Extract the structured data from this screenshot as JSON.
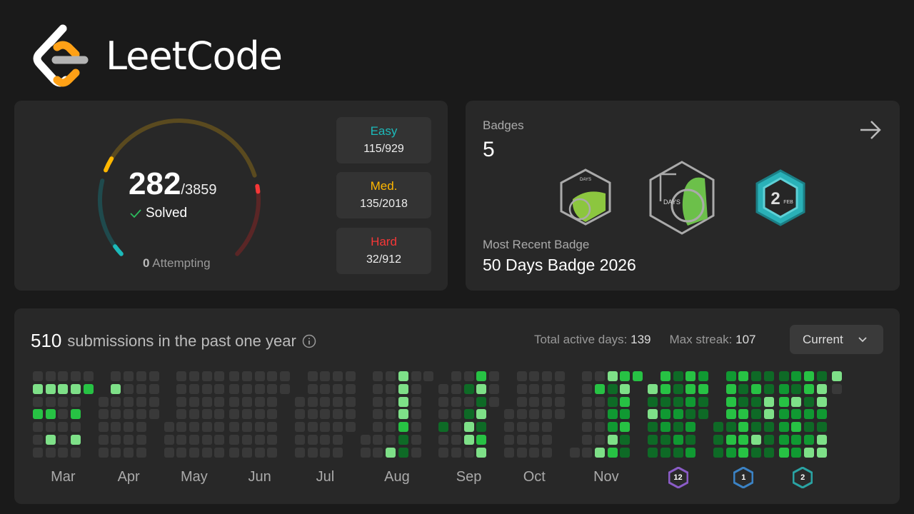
{
  "brand": {
    "name": "LeetCode"
  },
  "progress": {
    "solved": "282",
    "total": "/3859",
    "solved_label": "Solved",
    "attempting_count": "0",
    "attempting_label": "Attempting",
    "difficulties": [
      {
        "label": "Easy",
        "value": "115/929",
        "color": "#1cbaba",
        "solved": 115,
        "total": 929
      },
      {
        "label": "Med.",
        "value": "135/2018",
        "color": "#ffb700",
        "solved": 135,
        "total": 2018
      },
      {
        "label": "Hard",
        "value": "32/912",
        "color": "#f63737",
        "solved": 32,
        "total": 912
      }
    ]
  },
  "badges": {
    "title": "Badges",
    "count": "5",
    "items": [
      {
        "name": "60-days-badge",
        "text": "DAYS"
      },
      {
        "name": "50-days-badge",
        "text": "DAYS"
      },
      {
        "name": "feb-daily-badge",
        "text": "2",
        "sub": "FEB"
      }
    ],
    "recent_label": "Most Recent Badge",
    "recent": "50 Days Badge 2026"
  },
  "submissions": {
    "count": "510",
    "text": "submissions in the past one year",
    "active_label": "Total active days:",
    "active": "139",
    "streak_label": "Max streak:",
    "streak": "107",
    "dropdown": "Current",
    "colors": [
      "#393939",
      "#0e6a26",
      "#109932",
      "#27c244",
      "#7ee088"
    ],
    "months": [
      {
        "label": "Mar",
        "cols": [
          [
            0,
            4,
            0,
            3,
            0,
            0,
            0
          ],
          [
            0,
            4,
            0,
            3,
            0,
            4,
            0
          ],
          [
            0,
            4,
            0,
            0,
            0,
            0,
            0
          ],
          [
            0,
            4,
            0,
            3,
            0,
            4,
            0
          ],
          [
            0,
            3,
            -1,
            -1,
            -1,
            -1,
            -1
          ]
        ]
      },
      {
        "label": "Apr",
        "cols": [
          [
            -1,
            -1,
            0,
            0,
            0,
            0,
            0
          ],
          [
            0,
            4,
            0,
            0,
            0,
            0,
            0
          ],
          [
            0,
            0,
            0,
            0,
            0,
            0,
            0
          ],
          [
            0,
            0,
            0,
            0,
            0,
            0,
            0
          ],
          [
            0,
            0,
            0,
            0,
            -1,
            -1,
            -1
          ]
        ]
      },
      {
        "label": "May",
        "cols": [
          [
            -1,
            -1,
            -1,
            -1,
            0,
            0,
            0
          ],
          [
            0,
            0,
            0,
            0,
            0,
            0,
            0
          ],
          [
            0,
            0,
            0,
            0,
            0,
            0,
            0
          ],
          [
            0,
            0,
            0,
            0,
            0,
            0,
            0
          ],
          [
            0,
            0,
            0,
            0,
            0,
            0,
            0
          ]
        ]
      },
      {
        "label": "Jun",
        "cols": [
          [
            0,
            0,
            0,
            0,
            0,
            0,
            0
          ],
          [
            0,
            0,
            0,
            0,
            0,
            0,
            0
          ],
          [
            0,
            0,
            0,
            0,
            0,
            0,
            0
          ],
          [
            0,
            0,
            0,
            0,
            0,
            0,
            0
          ],
          [
            0,
            0,
            -1,
            -1,
            -1,
            -1,
            -1
          ]
        ]
      },
      {
        "label": "Jul",
        "cols": [
          [
            -1,
            -1,
            0,
            0,
            0,
            0,
            0
          ],
          [
            0,
            0,
            0,
            0,
            0,
            0,
            0
          ],
          [
            0,
            0,
            0,
            0,
            0,
            0,
            0
          ],
          [
            0,
            0,
            0,
            0,
            0,
            0,
            0
          ],
          [
            0,
            0,
            0,
            0,
            0,
            -1,
            -1
          ]
        ]
      },
      {
        "label": "Aug",
        "cols": [
          [
            -1,
            -1,
            -1,
            -1,
            -1,
            0,
            0
          ],
          [
            0,
            0,
            0,
            0,
            0,
            0,
            0
          ],
          [
            0,
            0,
            0,
            0,
            0,
            0,
            4
          ],
          [
            4,
            4,
            4,
            4,
            3,
            1,
            1
          ],
          [
            0,
            0,
            0,
            0,
            0,
            0,
            0
          ],
          [
            0,
            -1,
            -1,
            -1,
            -1,
            -1,
            -1
          ]
        ]
      },
      {
        "label": "Sep",
        "cols": [
          [
            -1,
            0,
            0,
            0,
            1,
            0,
            0
          ],
          [
            0,
            0,
            0,
            0,
            0,
            0,
            0
          ],
          [
            0,
            1,
            0,
            1,
            4,
            4,
            0
          ],
          [
            3,
            4,
            1,
            4,
            1,
            3,
            4
          ],
          [
            0,
            0,
            0,
            -1,
            -1,
            -1,
            -1
          ]
        ]
      },
      {
        "label": "Oct",
        "cols": [
          [
            -1,
            -1,
            -1,
            0,
            0,
            0,
            0
          ],
          [
            0,
            0,
            0,
            0,
            0,
            0,
            0
          ],
          [
            0,
            0,
            0,
            0,
            0,
            0,
            0
          ],
          [
            0,
            0,
            0,
            0,
            0,
            0,
            0
          ],
          [
            0,
            0,
            0,
            0,
            -1,
            -1,
            -1
          ]
        ]
      },
      {
        "label": "Nov",
        "cols": [
          [
            -1,
            -1,
            -1,
            -1,
            -1,
            -1,
            0
          ],
          [
            0,
            0,
            0,
            0,
            0,
            0,
            0
          ],
          [
            0,
            3,
            0,
            0,
            0,
            0,
            4
          ],
          [
            4,
            1,
            1,
            2,
            2,
            4,
            3
          ],
          [
            3,
            4,
            3,
            2,
            3,
            1,
            1
          ],
          [
            3,
            -1,
            -1,
            -1,
            -1,
            -1,
            -1
          ]
        ]
      },
      {
        "badge": "12",
        "badge_color": "#8b5cc7",
        "cols": [
          [
            -1,
            4,
            1,
            4,
            1,
            1,
            1
          ],
          [
            3,
            3,
            1,
            2,
            2,
            1,
            1
          ],
          [
            1,
            1,
            1,
            2,
            1,
            2,
            1
          ],
          [
            3,
            3,
            2,
            1,
            2,
            1,
            2
          ],
          [
            2,
            3,
            1,
            1,
            -1,
            -1,
            -1
          ]
        ]
      },
      {
        "badge": "1",
        "badge_color": "#3b82c4",
        "cols": [
          [
            -1,
            -1,
            -1,
            -1,
            1,
            1,
            1
          ],
          [
            2,
            3,
            3,
            3,
            1,
            3,
            2
          ],
          [
            3,
            1,
            1,
            3,
            3,
            3,
            3
          ],
          [
            1,
            3,
            1,
            1,
            1,
            4,
            1
          ],
          [
            1,
            1,
            4,
            4,
            1,
            1,
            1
          ]
        ]
      },
      {
        "badge": "2",
        "badge_color": "#2aa3a3",
        "cols": [
          [
            1,
            2,
            3,
            2,
            2,
            2,
            3
          ],
          [
            2,
            1,
            4,
            2,
            3,
            2,
            2
          ],
          [
            3,
            3,
            1,
            2,
            1,
            2,
            4
          ],
          [
            1,
            4,
            4,
            2,
            1,
            4,
            4
          ]
        ]
      },
      {
        "cols": [
          [
            4,
            0,
            -1,
            -1,
            -1,
            -1,
            -1
          ]
        ]
      }
    ]
  }
}
